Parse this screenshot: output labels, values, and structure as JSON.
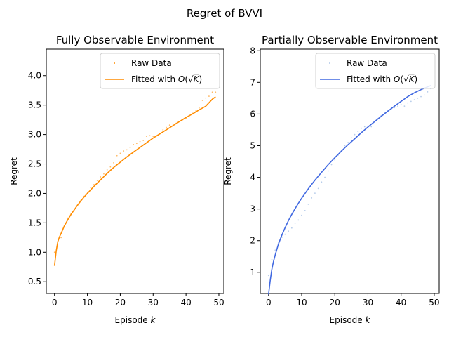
{
  "figure": {
    "suptitle": "Regret of BVVI"
  },
  "chart_data": [
    {
      "type": "scatter",
      "title": "Fully Observable Environment",
      "xlabel": "Episode k",
      "ylabel": "Regret",
      "xlim": [
        -2.5,
        51.5
      ],
      "ylim": [
        0.3,
        4.45
      ],
      "xticks": [
        0,
        10,
        20,
        30,
        40,
        50
      ],
      "yticks": [
        0.5,
        1.0,
        1.5,
        2.0,
        2.5,
        3.0,
        3.5,
        4.0
      ],
      "tick_labels_x": [
        "0",
        "10",
        "20",
        "30",
        "40",
        "50"
      ],
      "tick_labels_y": [
        "0.5",
        "1.0",
        "1.5",
        "2.0",
        "2.5",
        "3.0",
        "3.5",
        "4.0"
      ],
      "legend_position": "top-right",
      "series": [
        {
          "name": "Raw Data",
          "kind": "points",
          "color": "#ff8c00",
          "marker_opacity": 0.6,
          "x": [
            0,
            1,
            2,
            3,
            4,
            5,
            6,
            7,
            8,
            9,
            10,
            11,
            12,
            13,
            14,
            15,
            16,
            17,
            18,
            19,
            20,
            21,
            22,
            23,
            24,
            25,
            26,
            27,
            28,
            29,
            30,
            31,
            32,
            33,
            34,
            35,
            36,
            37,
            38,
            39,
            40,
            41,
            42,
            43,
            44,
            45,
            46,
            47,
            48,
            49
          ],
          "y": [
            1.0,
            1.18,
            1.25,
            1.45,
            1.58,
            1.66,
            1.72,
            1.8,
            1.88,
            1.95,
            2.02,
            2.1,
            2.15,
            2.22,
            2.28,
            2.33,
            2.4,
            2.45,
            2.52,
            2.64,
            2.68,
            2.72,
            2.74,
            2.78,
            2.83,
            2.85,
            2.88,
            2.9,
            2.97,
            2.98,
            2.97,
            2.98,
            3.02,
            3.08,
            3.12,
            3.16,
            3.18,
            3.19,
            3.22,
            3.25,
            3.28,
            3.3,
            3.36,
            3.4,
            3.45,
            3.58,
            3.62,
            3.65,
            3.72,
            3.72
          ]
        },
        {
          "name": "Fitted with O(√K)",
          "kind": "line",
          "color": "#ff8c00",
          "x": [
            0,
            0.5,
            1,
            1.5,
            2,
            3,
            4,
            5,
            6,
            7,
            8,
            9,
            10,
            12,
            14,
            16,
            18,
            20,
            22,
            24,
            26,
            28,
            30,
            32,
            34,
            36,
            38,
            40,
            42,
            44,
            46,
            48,
            49
          ],
          "y": [
            0.77,
            1.02,
            1.18,
            1.26,
            1.32,
            1.45,
            1.55,
            1.64,
            1.72,
            1.8,
            1.87,
            1.94,
            2.0,
            2.12,
            2.23,
            2.34,
            2.44,
            2.53,
            2.62,
            2.7,
            2.78,
            2.86,
            2.94,
            3.01,
            3.08,
            3.15,
            3.22,
            3.29,
            3.35,
            3.42,
            3.48,
            3.6,
            3.64
          ]
        }
      ]
    },
    {
      "type": "scatter",
      "title": "Partially Observable Environment",
      "xlabel": "Episode k",
      "ylabel": "Regret",
      "xlim": [
        -2.5,
        51.5
      ],
      "ylim": [
        0.33,
        8.05
      ],
      "xticks": [
        0,
        10,
        20,
        30,
        40,
        50
      ],
      "yticks": [
        1,
        2,
        3,
        4,
        5,
        6,
        7,
        8
      ],
      "tick_labels_x": [
        "0",
        "10",
        "20",
        "30",
        "40",
        "50"
      ],
      "tick_labels_y": [
        "1",
        "2",
        "3",
        "4",
        "5",
        "6",
        "7",
        "8"
      ],
      "legend_position": "top-right",
      "series": [
        {
          "name": "Raw Data",
          "kind": "points",
          "color": "#aec7e8",
          "marker_opacity": 0.9,
          "x": [
            0,
            1,
            2,
            3,
            4,
            5,
            6,
            7,
            8,
            9,
            10,
            11,
            12,
            13,
            14,
            15,
            16,
            17,
            18,
            19,
            20,
            21,
            22,
            23,
            24,
            25,
            26,
            27,
            28,
            29,
            30,
            31,
            32,
            33,
            34,
            35,
            36,
            37,
            38,
            39,
            40,
            41,
            42,
            43,
            44,
            45,
            46,
            47,
            48,
            49
          ],
          "y": [
            0.9,
            1.4,
            1.7,
            1.95,
            2.1,
            2.2,
            2.3,
            2.4,
            2.55,
            2.65,
            2.8,
            2.95,
            3.15,
            3.35,
            3.5,
            3.65,
            3.85,
            4.0,
            4.2,
            4.4,
            4.55,
            4.7,
            4.85,
            5.0,
            5.1,
            5.25,
            5.35,
            5.45,
            5.55,
            5.6,
            5.55,
            5.6,
            5.75,
            5.85,
            5.95,
            6.05,
            6.1,
            6.15,
            6.2,
            6.25,
            6.3,
            6.25,
            6.35,
            6.4,
            6.45,
            6.5,
            6.55,
            6.6,
            6.7,
            6.8
          ]
        },
        {
          "name": "Fitted with O(√K)",
          "kind": "line",
          "color": "#4169e1",
          "x": [
            0,
            0.5,
            1,
            1.5,
            2,
            3,
            4,
            5,
            6,
            7,
            8,
            9,
            10,
            12,
            14,
            16,
            18,
            20,
            22,
            24,
            26,
            28,
            30,
            32,
            34,
            36,
            38,
            40,
            42,
            44,
            46,
            48,
            49
          ],
          "y": [
            0.3,
            0.75,
            1.1,
            1.35,
            1.55,
            1.9,
            2.17,
            2.41,
            2.63,
            2.83,
            3.01,
            3.18,
            3.34,
            3.64,
            3.91,
            4.16,
            4.4,
            4.62,
            4.83,
            5.03,
            5.22,
            5.41,
            5.59,
            5.76,
            5.93,
            6.09,
            6.25,
            6.4,
            6.55,
            6.67,
            6.77,
            6.86,
            6.9
          ]
        }
      ]
    }
  ]
}
